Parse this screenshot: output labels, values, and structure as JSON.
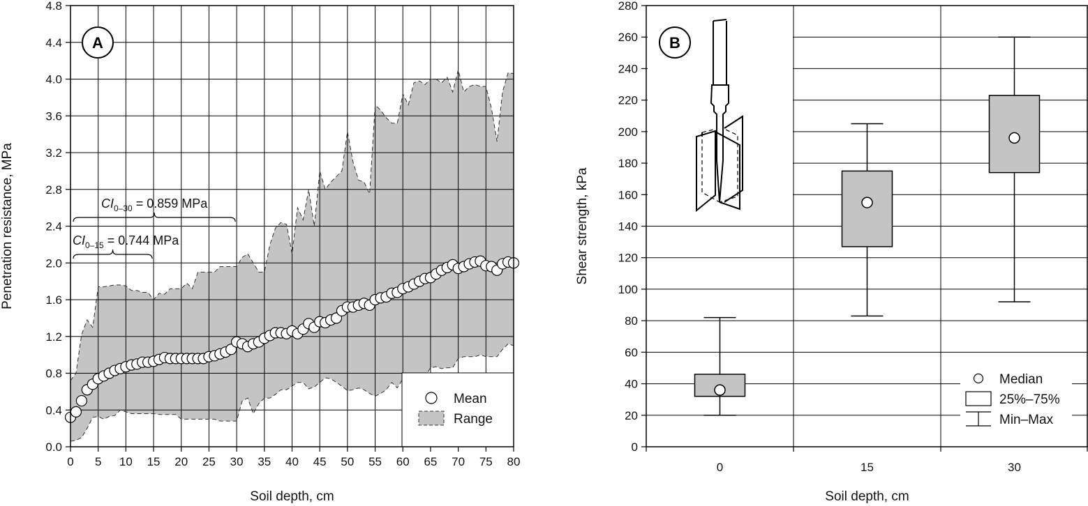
{
  "chart_data": [
    {
      "panel": "A",
      "type": "line",
      "xlabel": "Soil depth, cm",
      "ylabel": "Penetration resistance, MPa",
      "xlim": [
        0,
        80
      ],
      "ylim": [
        0.0,
        4.8
      ],
      "x_ticks": [
        "0",
        "5",
        "10",
        "15",
        "20",
        "25",
        "30",
        "35",
        "40",
        "45",
        "50",
        "55",
        "60",
        "65",
        "70",
        "75",
        "80"
      ],
      "y_ticks": [
        "0.0",
        "0.4",
        "0.8",
        "1.2",
        "1.6",
        "2.0",
        "2.4",
        "2.8",
        "3.2",
        "3.6",
        "4.0",
        "4.4",
        "4.8"
      ],
      "grid": true,
      "legend_position": "bottom-right",
      "legend": [
        "Mean",
        "Range"
      ],
      "annotations": [
        {
          "var": "CI",
          "sub": "0–30",
          "rest": " = 0.859 MPa",
          "range": [
            0,
            30
          ]
        },
        {
          "var": "CI",
          "sub": "0–15",
          "rest": " = 0.744 MPa",
          "range": [
            0,
            15
          ]
        }
      ],
      "series": [
        {
          "name": "Mean",
          "x": [
            0,
            1,
            2,
            3,
            4,
            5,
            6,
            7,
            8,
            9,
            10,
            11,
            12,
            13,
            14,
            15,
            16,
            17,
            18,
            19,
            20,
            21,
            22,
            23,
            24,
            25,
            26,
            27,
            28,
            29,
            30,
            31,
            32,
            33,
            34,
            35,
            36,
            37,
            38,
            39,
            40,
            41,
            42,
            43,
            44,
            45,
            46,
            47,
            48,
            49,
            50,
            51,
            52,
            53,
            54,
            55,
            56,
            57,
            58,
            59,
            60,
            61,
            62,
            63,
            64,
            65,
            66,
            67,
            68,
            69,
            70,
            71,
            72,
            73,
            74,
            75,
            76,
            77,
            78,
            79,
            80
          ],
          "y": [
            0.32,
            0.38,
            0.5,
            0.62,
            0.68,
            0.74,
            0.77,
            0.8,
            0.83,
            0.85,
            0.87,
            0.89,
            0.9,
            0.92,
            0.92,
            0.93,
            0.95,
            0.97,
            0.96,
            0.96,
            0.96,
            0.96,
            0.96,
            0.96,
            0.96,
            0.98,
            0.99,
            1.01,
            1.03,
            1.06,
            1.14,
            1.12,
            1.09,
            1.12,
            1.14,
            1.18,
            1.21,
            1.24,
            1.24,
            1.23,
            1.26,
            1.23,
            1.28,
            1.34,
            1.3,
            1.36,
            1.35,
            1.38,
            1.4,
            1.48,
            1.52,
            1.52,
            1.54,
            1.56,
            1.54,
            1.6,
            1.62,
            1.63,
            1.67,
            1.68,
            1.72,
            1.74,
            1.77,
            1.8,
            1.83,
            1.84,
            1.88,
            1.92,
            1.95,
            1.98,
            1.94,
            1.96,
            1.99,
            2.01,
            2.02,
            1.97,
            1.96,
            1.92,
            1.99,
            2.01,
            2.0
          ]
        },
        {
          "name": "Range",
          "x": [
            0,
            1,
            2,
            3,
            4,
            5,
            6,
            7,
            8,
            9,
            10,
            11,
            12,
            13,
            14,
            15,
            16,
            17,
            18,
            19,
            20,
            21,
            22,
            23,
            24,
            25,
            26,
            27,
            28,
            29,
            30,
            31,
            32,
            33,
            34,
            35,
            36,
            37,
            38,
            39,
            40,
            41,
            42,
            43,
            44,
            45,
            46,
            47,
            48,
            49,
            50,
            51,
            52,
            53,
            54,
            55,
            56,
            57,
            58,
            59,
            60,
            61,
            62,
            63,
            64,
            65,
            66,
            67,
            68,
            69,
            70,
            71,
            72,
            73,
            74,
            75,
            76,
            77,
            78,
            79,
            80
          ],
          "upper": [
            0.72,
            0.8,
            1.22,
            1.38,
            1.3,
            1.74,
            1.74,
            1.75,
            1.76,
            1.76,
            1.75,
            1.7,
            1.7,
            1.68,
            1.68,
            1.6,
            1.67,
            1.66,
            1.72,
            1.72,
            1.72,
            1.78,
            1.72,
            1.9,
            1.9,
            1.9,
            1.9,
            1.96,
            1.96,
            1.96,
            1.96,
            2.06,
            2.1,
            2.0,
            1.9,
            1.9,
            2.2,
            2.38,
            2.44,
            2.42,
            2.1,
            2.6,
            2.47,
            2.8,
            2.4,
            3.0,
            2.8,
            2.88,
            2.94,
            3.0,
            3.43,
            3.1,
            2.9,
            2.88,
            2.75,
            3.72,
            3.66,
            3.58,
            3.52,
            3.52,
            3.84,
            3.72,
            3.96,
            3.98,
            3.94,
            4.0,
            4.0,
            3.96,
            4.02,
            3.86,
            4.1,
            3.86,
            3.92,
            3.94,
            3.92,
            3.92,
            3.68,
            3.32,
            3.86,
            4.07,
            4.06
          ],
          "lower": [
            0.06,
            0.07,
            0.1,
            0.2,
            0.32,
            0.33,
            0.3,
            0.33,
            0.34,
            0.4,
            0.38,
            0.36,
            0.36,
            0.36,
            0.36,
            0.36,
            0.35,
            0.35,
            0.35,
            0.35,
            0.3,
            0.3,
            0.3,
            0.3,
            0.3,
            0.3,
            0.3,
            0.28,
            0.28,
            0.28,
            0.28,
            0.5,
            0.53,
            0.36,
            0.47,
            0.53,
            0.53,
            0.57,
            0.62,
            0.62,
            0.66,
            0.7,
            0.7,
            0.63,
            0.65,
            0.7,
            0.75,
            0.74,
            0.7,
            0.66,
            0.61,
            0.62,
            0.64,
            0.62,
            0.58,
            0.55,
            0.58,
            0.62,
            0.7,
            0.64,
            0.74,
            0.76,
            0.76,
            0.74,
            0.76,
            0.86,
            0.87,
            0.85,
            0.86,
            0.86,
            0.96,
            0.98,
            0.98,
            0.98,
            1.0,
            0.98,
            0.98,
            0.98,
            1.06,
            1.12,
            1.1
          ]
        }
      ]
    },
    {
      "panel": "B",
      "type": "box",
      "xlabel": "Soil depth, cm",
      "ylabel": "Shear strength, kPa",
      "categories": [
        "0",
        "15",
        "30"
      ],
      "ylim": [
        0,
        280
      ],
      "y_ticks": [
        "0",
        "20",
        "40",
        "60",
        "80",
        "100",
        "120",
        "140",
        "160",
        "180",
        "200",
        "220",
        "240",
        "260",
        "280"
      ],
      "grid": true,
      "legend_position": "bottom-right",
      "legend": [
        "Median",
        "25%–75%",
        "Min–Max"
      ],
      "boxes": [
        {
          "category": "0",
          "min": 20,
          "q1": 32,
          "median": 36,
          "q3": 46,
          "max": 82
        },
        {
          "category": "15",
          "min": 83,
          "q1": 127,
          "median": 155,
          "q3": 175,
          "max": 205
        },
        {
          "category": "30",
          "min": 92,
          "q1": 174,
          "median": 196,
          "q3": 223,
          "max": 260
        }
      ]
    }
  ]
}
